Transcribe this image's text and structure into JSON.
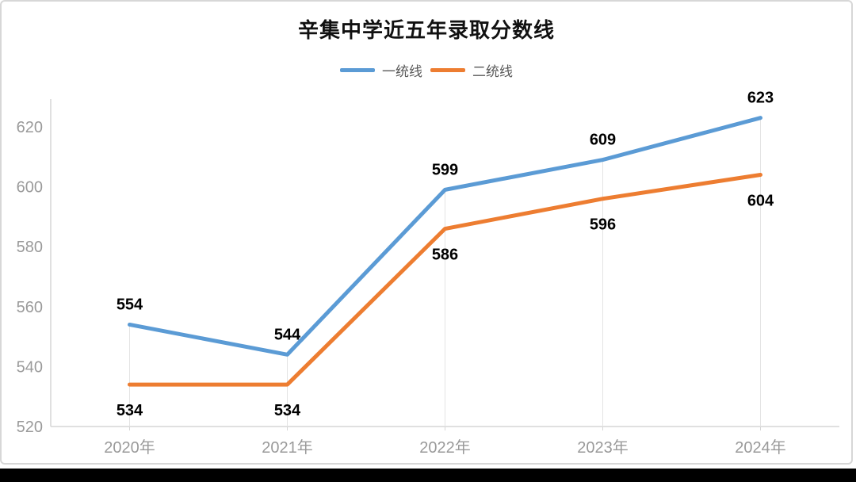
{
  "title": "辛集中学近五年录取分数线",
  "legend": [
    {
      "label": "一统线",
      "color": "#5B9BD5"
    },
    {
      "label": "二统线",
      "color": "#ED7D31"
    }
  ],
  "chart_data": {
    "type": "line",
    "title": "辛集中学近五年录取分数线",
    "categories": [
      "2020年",
      "2021年",
      "2022年",
      "2023年",
      "2024年"
    ],
    "series": [
      {
        "name": "一统线",
        "color": "#5B9BD5",
        "values": [
          554,
          544,
          599,
          609,
          623
        ],
        "label_position": "above"
      },
      {
        "name": "二统线",
        "color": "#ED7D31",
        "values": [
          534,
          534,
          586,
          596,
          604
        ],
        "label_position": "below"
      }
    ],
    "xlabel": "",
    "ylabel": "",
    "ylim": [
      520,
      630
    ],
    "yticks": [
      520,
      540,
      560,
      580,
      600,
      620
    ],
    "grid": "vertical drop lines at each category",
    "legend_position": "top",
    "colors": {
      "axis": "#d6d6d6",
      "drop_line": "#e4e4e4",
      "tick_label": "#9a9a9a",
      "data_label": "#000000"
    }
  }
}
